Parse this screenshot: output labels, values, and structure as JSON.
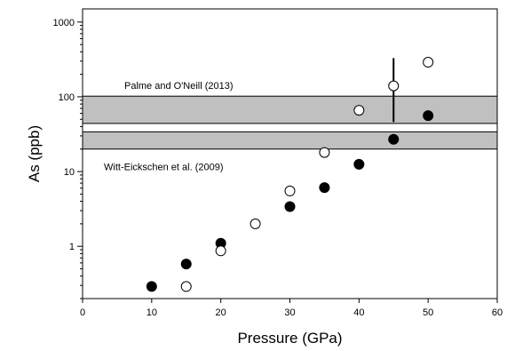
{
  "chart_data": {
    "type": "scatter",
    "title": "",
    "xlabel": "Pressure (GPa)",
    "ylabel": "As (ppb)",
    "xlim": [
      0,
      60
    ],
    "ylim": [
      0.2,
      1500
    ],
    "yscale": "log",
    "xticks": [
      "0",
      "10",
      "20",
      "30",
      "40",
      "50",
      "60"
    ],
    "yticks": [
      "1",
      "10",
      "100",
      "1000"
    ],
    "grid": false,
    "series": [
      {
        "marker": "filled-circle",
        "color": "#000000",
        "x": [
          10,
          15,
          20,
          30,
          35,
          40,
          45,
          50
        ],
        "y": [
          0.29,
          0.58,
          1.1,
          3.4,
          6.1,
          12.5,
          27,
          56
        ]
      },
      {
        "marker": "open-circle",
        "color": "#000000",
        "x": [
          15,
          20,
          25,
          30,
          35,
          40,
          45,
          50
        ],
        "y": [
          0.29,
          0.87,
          2.0,
          5.5,
          18,
          66,
          140,
          290
        ]
      }
    ],
    "error_bars": [
      {
        "x": 45,
        "y_low": 46,
        "y_high": 330
      }
    ],
    "bands": [
      {
        "label": "Palme and O'Neill (2013)",
        "y_low": 44,
        "y_high": 102,
        "color": "#c0c0c0"
      },
      {
        "label": "Witt-Eickschen et al. (2009)",
        "y_low": 20,
        "y_high": 34,
        "color": "#c0c0c0"
      }
    ]
  }
}
